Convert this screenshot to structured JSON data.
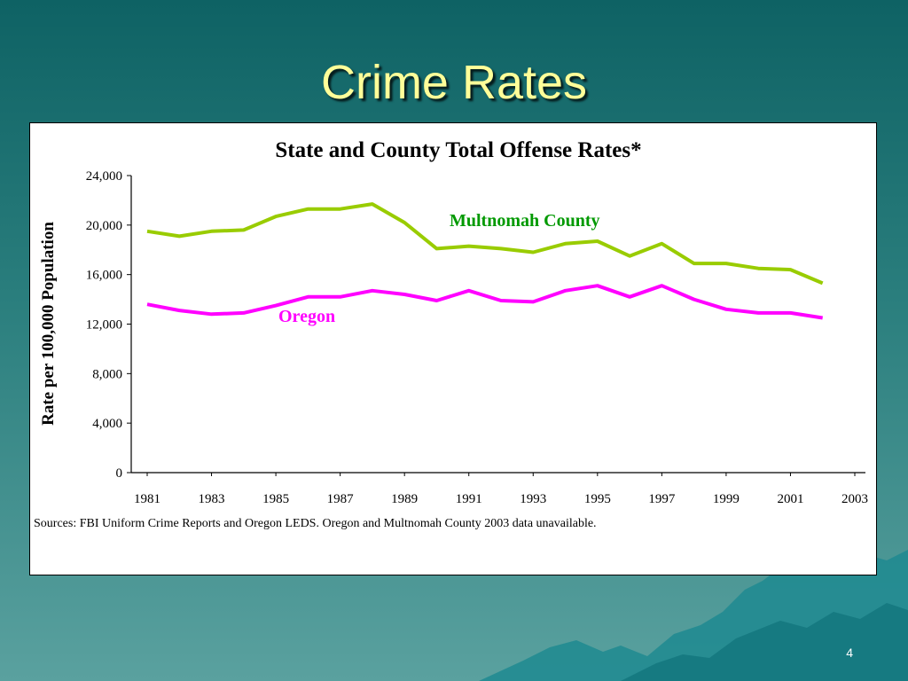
{
  "slide": {
    "title": "Crime Rates",
    "page_number": "4"
  },
  "colors": {
    "background_top": "#0e6264",
    "background_bottom": "#5aa19f",
    "title_color": "#ffff99",
    "multnomah": "#99cc00",
    "oregon": "#ff00ff",
    "multnomah_label": "#009900",
    "oregon_label": "#ff00ff"
  },
  "chart_data": {
    "type": "line",
    "title": "State and County Total Offense Rates*",
    "xlabel": "",
    "ylabel": "Rate per 100,000 Population",
    "xlim": [
      1981,
      2003
    ],
    "ylim": [
      0,
      24000
    ],
    "x_ticks": [
      "1981",
      "1983",
      "1985",
      "1987",
      "1989",
      "1991",
      "1993",
      "1995",
      "1997",
      "1999",
      "2001",
      "2003"
    ],
    "y_ticks": [
      "0",
      "4,000",
      "8,000",
      "12,000",
      "16,000",
      "20,000",
      "24,000"
    ],
    "grid": false,
    "x": [
      1981,
      1982,
      1983,
      1984,
      1985,
      1986,
      1987,
      1988,
      1989,
      1990,
      1991,
      1992,
      1993,
      1994,
      1995,
      1996,
      1997,
      1998,
      1999,
      2000,
      2001,
      2002
    ],
    "series": [
      {
        "name": "Multnomah County",
        "values": [
          19500,
          19100,
          19500,
          19600,
          20700,
          21300,
          21300,
          21700,
          20200,
          18100,
          18300,
          18100,
          17800,
          18500,
          18700,
          17500,
          18500,
          16900,
          16900,
          16500,
          16400,
          15300
        ]
      },
      {
        "name": "Oregon",
        "values": [
          13600,
          13100,
          12800,
          12900,
          13500,
          14200,
          14200,
          14700,
          14400,
          13900,
          14700,
          13900,
          13800,
          14700,
          15100,
          14200,
          15100,
          14000,
          13200,
          12900,
          12900,
          12500
        ]
      }
    ],
    "annotations": {
      "source": "Sources: FBI Uniform Crime Reports and Oregon LEDS. Oregon and Multnomah County 2003 data unavailable."
    }
  }
}
